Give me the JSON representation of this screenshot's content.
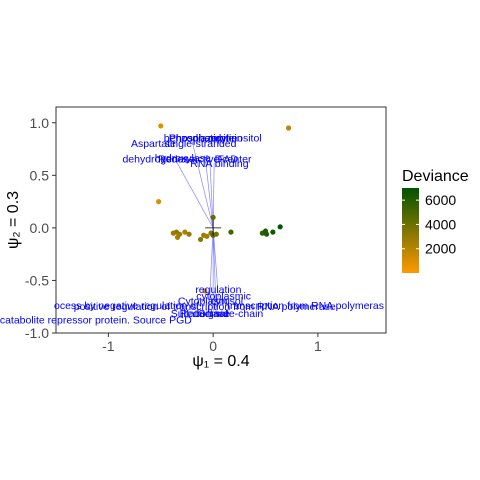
{
  "chart_data": {
    "type": "scatter",
    "xlabel": "ψ₁ = 0.4",
    "ylabel": "ψ₂ = 0.3",
    "xlim": [
      -1.5,
      1.65
    ],
    "ylim": [
      -1.0,
      1.15
    ],
    "x_ticks": [
      -1,
      0,
      1
    ],
    "x_tick_labels": [
      "-1",
      "0",
      "1"
    ],
    "y_ticks": [
      -1.0,
      -0.5,
      0.0,
      0.5,
      1.0
    ],
    "y_tick_labels": [
      "-1.0",
      "-0.5",
      "0.0",
      "0.5",
      "1.0"
    ],
    "grid": false,
    "legend": {
      "title": "Deviance",
      "position": "right",
      "range": [
        0,
        7000
      ],
      "ticks": [
        2000,
        4000,
        6000
      ],
      "tick_labels": [
        "2000",
        "4000",
        "6000"
      ],
      "low_color": "#ff9900",
      "high_color": "#005200"
    },
    "points": [
      {
        "x": -0.5,
        "y": 0.97,
        "deviance": 900
      },
      {
        "x": 0.72,
        "y": 0.95,
        "deviance": 1800
      },
      {
        "x": -0.52,
        "y": 0.25,
        "deviance": 1000
      },
      {
        "x": -0.38,
        "y": -0.05,
        "deviance": 2600
      },
      {
        "x": -0.35,
        "y": -0.04,
        "deviance": 3000
      },
      {
        "x": -0.34,
        "y": -0.09,
        "deviance": 2500
      },
      {
        "x": -0.32,
        "y": -0.06,
        "deviance": 2800
      },
      {
        "x": -0.27,
        "y": -0.04,
        "deviance": 2400
      },
      {
        "x": -0.23,
        "y": -0.06,
        "deviance": 2900
      },
      {
        "x": -0.12,
        "y": -0.11,
        "deviance": 3200
      },
      {
        "x": -0.09,
        "y": -0.07,
        "deviance": 2700
      },
      {
        "x": -0.06,
        "y": -0.08,
        "deviance": 2600
      },
      {
        "x": -0.02,
        "y": -0.05,
        "deviance": 3500
      },
      {
        "x": 0.0,
        "y": 0.1,
        "deviance": 4200
      },
      {
        "x": 0.0,
        "y": -0.07,
        "deviance": 4500
      },
      {
        "x": 0.03,
        "y": -0.06,
        "deviance": 3800
      },
      {
        "x": 0.17,
        "y": -0.04,
        "deviance": 5200
      },
      {
        "x": 0.47,
        "y": -0.05,
        "deviance": 5800
      },
      {
        "x": 0.5,
        "y": -0.03,
        "deviance": 6000
      },
      {
        "x": 0.51,
        "y": -0.06,
        "deviance": 6200
      },
      {
        "x": 0.57,
        "y": -0.04,
        "deviance": 6500
      },
      {
        "x": 0.64,
        "y": 0.01,
        "deviance": 6800
      },
      {
        "x": -0.08,
        "y": -0.6,
        "deviance": 1100
      }
    ],
    "origin_cross": {
      "x": 0.0,
      "y": 0.0
    },
    "term_labels": [
      {
        "text": "benzodiazepine",
        "x": -0.12,
        "y": 0.82
      },
      {
        "text": "Phosphatidylinositol",
        "x": 0.02,
        "y": 0.82
      },
      {
        "text": "Phosphoprotein",
        "x": -0.07,
        "y": 0.82
      },
      {
        "text": "Aspartate",
        "x": -0.57,
        "y": 0.77
      },
      {
        "text": "single-stranded",
        "x": -0.12,
        "y": 0.77
      },
      {
        "text": "dehydrogenase",
        "x": -0.52,
        "y": 0.62
      },
      {
        "text": "hydroxylase",
        "x": -0.29,
        "y": 0.63
      },
      {
        "text": "Redox-active center",
        "x": -0.08,
        "y": 0.62
      },
      {
        "text": "D",
        "x": 0.05,
        "y": 0.62
      },
      {
        "text": "FAD",
        "x": 0.14,
        "y": 0.62
      },
      {
        "text": "RNA binding",
        "x": 0.06,
        "y": 0.58
      },
      {
        "text": "regulation",
        "x": 0.05,
        "y": -0.62
      },
      {
        "text": "cytoplasmic",
        "x": 0.1,
        "y": -0.68
      },
      {
        "text": "Cytoplasm",
        "x": -0.1,
        "y": -0.73
      },
      {
        "text": "cytosol",
        "x": 0.13,
        "y": -0.73
      },
      {
        "text": "positive regulation of transcription from RNA polymerase",
        "x": -0.08,
        "y": -0.78
      },
      {
        "text": "Sulfation",
        "x": -0.21,
        "y": -0.85
      },
      {
        "text": "Reductase",
        "x": -0.08,
        "y": -0.85
      },
      {
        "text": "Signal",
        "x": 0.0,
        "y": -0.85
      },
      {
        "text": "side-chain",
        "x": 0.25,
        "y": -0.85
      },
      {
        "text": "catabolite repressor protein. Source PGD",
        "x": -1.12,
        "y": -0.91
      }
    ],
    "loading_lines": [
      {
        "x": -0.07,
        "y": 0.62
      },
      {
        "x": -0.03,
        "y": 0.62
      },
      {
        "x": 0.01,
        "y": 0.62
      },
      {
        "x": -0.2,
        "y": 0.82
      },
      {
        "x": -0.35,
        "y": 0.63
      },
      {
        "x": 0.05,
        "y": -0.66
      },
      {
        "x": 0.0,
        "y": -0.8
      },
      {
        "x": -0.04,
        "y": -0.81
      },
      {
        "x": 0.03,
        "y": -0.84
      }
    ],
    "overlap_text": {
      "left_part": "ocess by negative regulation of",
      "right_part": "transcription from RNA polymeras",
      "y": -0.78
    }
  }
}
